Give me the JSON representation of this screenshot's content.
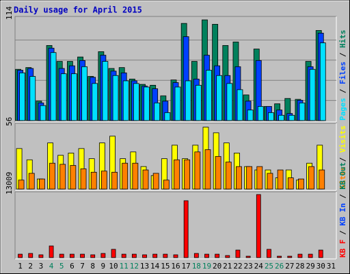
{
  "chart_data": [
    {
      "type": "bar",
      "title": "Daily usage for April 2015",
      "ylim": [
        0,
        114
      ],
      "yticks": [
        114
      ],
      "grid_divisions": 5,
      "legend_separator": " / ",
      "series": [
        {
          "name": "Hits",
          "color": "#00805c",
          "values": [
            58,
            60,
            22,
            85,
            67,
            67,
            72,
            50,
            78,
            59,
            60,
            47,
            41,
            40,
            28,
            46,
            110,
            67,
            114,
            109,
            85,
            89,
            29,
            81,
            16,
            19,
            25,
            24,
            67,
            102,
            null
          ]
        },
        {
          "name": "Files",
          "color": "#0040ff",
          "values": [
            57,
            59,
            20,
            82,
            59,
            62,
            68,
            49,
            74,
            56,
            54,
            45,
            39,
            36,
            22,
            43,
            95,
            47,
            74,
            62,
            51,
            61,
            22,
            68,
            16,
            12,
            8,
            23,
            61,
            99,
            null
          ]
        },
        {
          "name": "Pages",
          "color": "#00e0ff",
          "values": [
            54,
            50,
            17,
            77,
            53,
            53,
            61,
            42,
            67,
            51,
            45,
            42,
            38,
            20,
            9,
            38,
            45,
            40,
            57,
            51,
            42,
            35,
            12,
            16,
            9,
            6,
            6,
            20,
            58,
            88,
            null
          ]
        }
      ]
    },
    {
      "type": "bar",
      "ylim": [
        0,
        56
      ],
      "yticks": [
        56
      ],
      "legend_separator": " / ",
      "series": [
        {
          "name": "Visits",
          "color": "#ffff00",
          "values": [
            36,
            26,
            9,
            41,
            30,
            32,
            36,
            27,
            41,
            47,
            27,
            33,
            20,
            12,
            27,
            39,
            27,
            39,
            55,
            50,
            41,
            32,
            20,
            17,
            17,
            10,
            17,
            8,
            23,
            39,
            null
          ]
        },
        {
          "name": "Sites",
          "color": "#ff8000",
          "values": [
            8,
            14,
            9,
            23,
            22,
            21,
            18,
            15,
            16,
            15,
            23,
            23,
            17,
            14,
            8,
            26,
            26,
            33,
            35,
            29,
            24,
            20,
            20,
            20,
            14,
            17,
            10,
            9,
            20,
            17,
            null
          ]
        }
      ]
    },
    {
      "type": "bar",
      "ylim": [
        0,
        13009
      ],
      "yticks": [
        13009
      ],
      "legend_separator": " / ",
      "legend": [
        {
          "name": "KB In",
          "color": "#0040ff"
        },
        {
          "name": "KB Out",
          "color": "#00805c"
        }
      ],
      "categories": [
        "1",
        "2",
        "3",
        "4",
        "5",
        "6",
        "7",
        "8",
        "9",
        "10",
        "11",
        "12",
        "13",
        "14",
        "15",
        "16",
        "17",
        "18",
        "19",
        "20",
        "21",
        "22",
        "23",
        "24",
        "25",
        "26",
        "27",
        "28",
        "29",
        "30",
        "31"
      ],
      "category_colors": [
        "#000000",
        "#000000",
        "#000000",
        "#00805c",
        "#00805c",
        "#000000",
        "#000000",
        "#000000",
        "#000000",
        "#000000",
        "#00805c",
        "#00805c",
        "#000000",
        "#000000",
        "#000000",
        "#000000",
        "#000000",
        "#00805c",
        "#00805c",
        "#000000",
        "#000000",
        "#000000",
        "#000000",
        "#000000",
        "#00805c",
        "#00805c",
        "#000000",
        "#000000",
        "#000000",
        "#000000",
        "#000000"
      ],
      "series": [
        {
          "name": "KB F",
          "color": "#ff0000",
          "values": [
            700,
            850,
            570,
            2400,
            700,
            700,
            700,
            570,
            850,
            1700,
            700,
            700,
            570,
            700,
            700,
            570,
            11737,
            850,
            700,
            700,
            420,
            1550,
            280,
            13009,
            1700,
            280,
            280,
            700,
            700,
            1550,
            null
          ]
        }
      ]
    }
  ]
}
